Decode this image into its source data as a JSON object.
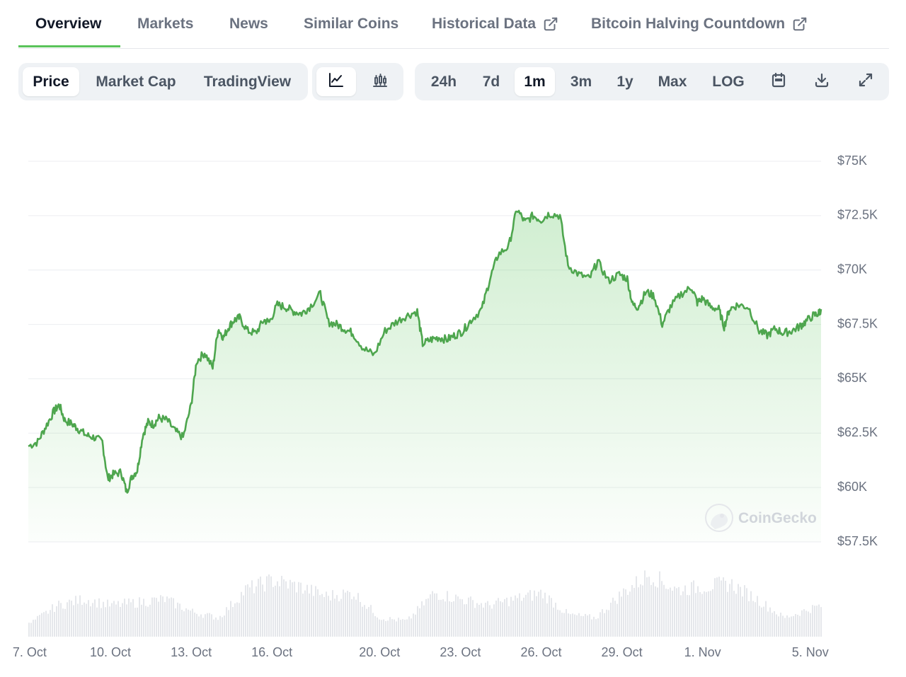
{
  "tabs": [
    {
      "label": "Overview",
      "active": true,
      "external": false
    },
    {
      "label": "Markets",
      "active": false,
      "external": false
    },
    {
      "label": "News",
      "active": false,
      "external": false
    },
    {
      "label": "Similar Coins",
      "active": false,
      "external": false
    },
    {
      "label": "Historical Data",
      "active": false,
      "external": true
    },
    {
      "label": "Bitcoin Halving Countdown",
      "active": false,
      "external": true
    }
  ],
  "view_toggle": [
    {
      "label": "Price",
      "active": true
    },
    {
      "label": "Market Cap",
      "active": false
    },
    {
      "label": "TradingView",
      "active": false
    }
  ],
  "chart_type_toggle": [
    {
      "icon": "line-chart-icon",
      "active": true
    },
    {
      "icon": "candlestick-chart-icon",
      "active": false
    }
  ],
  "range_toggle": [
    {
      "label": "24h",
      "active": false
    },
    {
      "label": "7d",
      "active": false
    },
    {
      "label": "1m",
      "active": true
    },
    {
      "label": "3m",
      "active": false
    },
    {
      "label": "1y",
      "active": false
    },
    {
      "label": "Max",
      "active": false
    },
    {
      "label": "LOG",
      "active": false
    }
  ],
  "tool_icons": [
    "calendar-icon",
    "download-icon",
    "expand-icon"
  ],
  "watermark": "CoinGecko",
  "colors": {
    "line": "#4ea64e",
    "accent": "#59c35a",
    "volume": "#e5e7eb"
  },
  "chart_data": {
    "type": "area",
    "title": "",
    "xlabel": "",
    "ylabel": "",
    "y_ticks": [
      {
        "value": 57500,
        "label": "$57.5K"
      },
      {
        "value": 60000,
        "label": "$60K"
      },
      {
        "value": 62500,
        "label": "$62.5K"
      },
      {
        "value": 65000,
        "label": "$65K"
      },
      {
        "value": 67500,
        "label": "$67.5K"
      },
      {
        "value": 70000,
        "label": "$70K"
      },
      {
        "value": 72500,
        "label": "$72.5K"
      },
      {
        "value": 75000,
        "label": "$75K"
      }
    ],
    "ylim": [
      57500,
      75000
    ],
    "x_range_days": [
      6.95,
      36.4
    ],
    "x_ticks": [
      {
        "day": 7,
        "label": "7. Oct"
      },
      {
        "day": 10,
        "label": "10. Oct"
      },
      {
        "day": 13,
        "label": "13. Oct"
      },
      {
        "day": 16,
        "label": "16. Oct"
      },
      {
        "day": 20,
        "label": "20. Oct"
      },
      {
        "day": 23,
        "label": "23. Oct"
      },
      {
        "day": 26,
        "label": "26. Oct"
      },
      {
        "day": 29,
        "label": "29. Oct"
      },
      {
        "day": 32,
        "label": "1. Nov"
      },
      {
        "day": 36,
        "label": "5. Nov"
      }
    ],
    "grid": true,
    "legend": "none",
    "series": [
      {
        "x": [
          6.95,
          7.3,
          7.6,
          7.9,
          8.1,
          8.3,
          8.6,
          8.8,
          9.1,
          9.4,
          9.7,
          9.9,
          10.1,
          10.4,
          10.6,
          10.8,
          11,
          11.2,
          11.4,
          11.6,
          11.8,
          12.1,
          12.4,
          12.7,
          13,
          13.2,
          13.5,
          13.8,
          14,
          14.2,
          14.4,
          14.6,
          14.8,
          15.1,
          15.4,
          15.7,
          15.9,
          16.2,
          16.5,
          16.8,
          17.1,
          17.4,
          17.8,
          18.1,
          18.4,
          18.7,
          19,
          19.4,
          19.8,
          20.2,
          20.6,
          21,
          21.4,
          21.6,
          21.9,
          22.2,
          22.5,
          22.8,
          23.1,
          23.4,
          23.8,
          24.1,
          24.4,
          24.8,
          25.1,
          25.4,
          25.7,
          26,
          26.3,
          26.7,
          27,
          27.4,
          27.8,
          28.1,
          28.5,
          28.9,
          29.2,
          29.4,
          29.6,
          29.9,
          30.2,
          30.5,
          30.8,
          31.2,
          31.6,
          31.8,
          32,
          32.3,
          32.6,
          32.8,
          33,
          33.3,
          33.7,
          34.1,
          34.4,
          34.7,
          35,
          35.3,
          35.6,
          35.8,
          36.1,
          36.3,
          36.4
        ],
        "y": [
          61900,
          62100,
          62800,
          63500,
          63800,
          63100,
          62900,
          62700,
          62400,
          62300,
          62100,
          60400,
          60600,
          60700,
          59800,
          60500,
          60800,
          62400,
          63000,
          62900,
          63200,
          63100,
          62600,
          62300,
          63800,
          65800,
          66200,
          65500,
          67300,
          66900,
          67400,
          67700,
          67800,
          67200,
          67100,
          67700,
          67600,
          68400,
          68300,
          68100,
          68000,
          68300,
          68900,
          67600,
          67500,
          67300,
          67100,
          66400,
          66100,
          67200,
          67600,
          67900,
          68100,
          66600,
          66800,
          66900,
          66800,
          67000,
          67200,
          67700,
          68200,
          69600,
          70700,
          71100,
          72800,
          72200,
          72500,
          72300,
          72600,
          72500,
          70200,
          69800,
          69600,
          70400,
          69500,
          69800,
          69600,
          68400,
          68300,
          69000,
          68800,
          67500,
          68300,
          68900,
          69200,
          68500,
          68700,
          68300,
          68200,
          67400,
          68200,
          68400,
          68300,
          67200,
          67000,
          67300,
          67100,
          67200,
          67400,
          67600,
          67900,
          68000,
          68200
        ]
      }
    ],
    "volume": {
      "note": "relative volume bars beneath price",
      "x": [
        6.95,
        8,
        9,
        10,
        11,
        12,
        13,
        14,
        15,
        16,
        17,
        18,
        19,
        20,
        21,
        22,
        23,
        24,
        25,
        26,
        27,
        28,
        29,
        30,
        31,
        32,
        33,
        34,
        35,
        36,
        36.4
      ],
      "v": [
        0.2,
        0.5,
        0.6,
        0.5,
        0.55,
        0.6,
        0.4,
        0.3,
        0.75,
        0.9,
        0.8,
        0.65,
        0.7,
        0.3,
        0.25,
        0.7,
        0.6,
        0.5,
        0.6,
        0.7,
        0.35,
        0.3,
        0.7,
        1.0,
        0.75,
        0.8,
        0.85,
        0.6,
        0.3,
        0.45,
        0.5
      ]
    }
  }
}
